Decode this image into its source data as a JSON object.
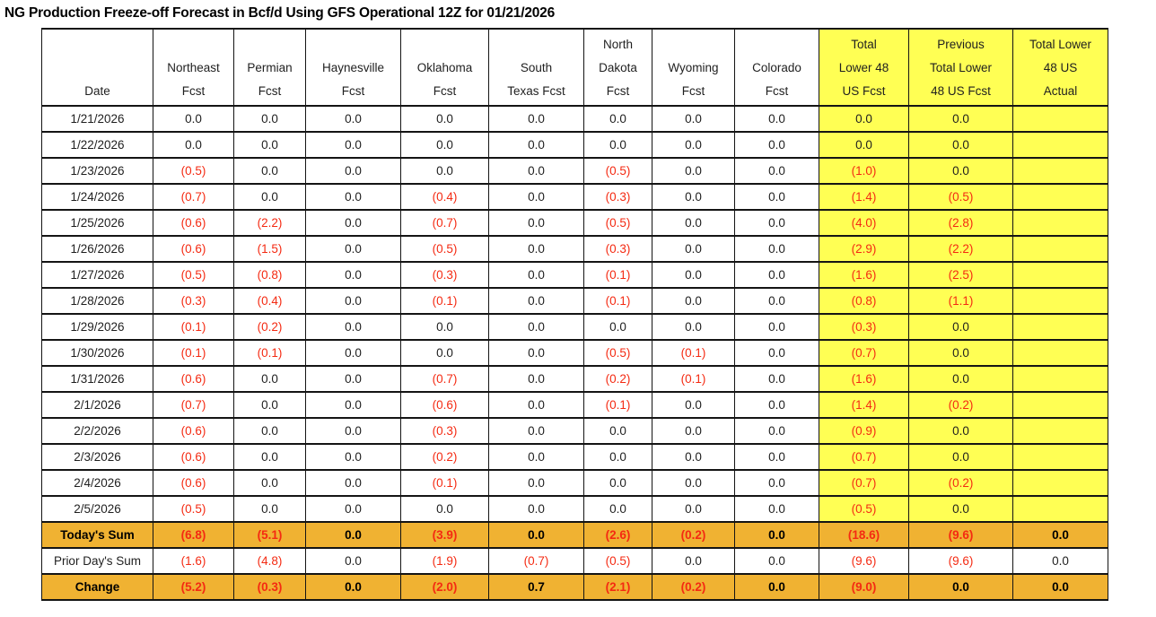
{
  "title": "NG Production Freeze-off Forecast in Bcf/d Using GFS Operational 12Z for 01/21/2026",
  "colors": {
    "yellow_highlight": "#FFFF54",
    "orange_highlight": "#F0B232",
    "negative_red": "#F42A12"
  },
  "table": {
    "columns": [
      {
        "id": "date",
        "label_lines": [
          "Date"
        ],
        "yellow": false
      },
      {
        "id": "northeast",
        "label_lines": [
          "Northeast",
          "Fcst"
        ],
        "yellow": false
      },
      {
        "id": "permian",
        "label_lines": [
          "Permian",
          "Fcst"
        ],
        "yellow": false
      },
      {
        "id": "haynesville",
        "label_lines": [
          "Haynesville",
          "Fcst"
        ],
        "yellow": false
      },
      {
        "id": "oklahoma",
        "label_lines": [
          "Oklahoma",
          "Fcst"
        ],
        "yellow": false
      },
      {
        "id": "south-texas",
        "label_lines": [
          "South",
          "Texas Fcst"
        ],
        "yellow": false
      },
      {
        "id": "north-dakota",
        "label_lines": [
          "North",
          "Dakota",
          "Fcst"
        ],
        "yellow": false
      },
      {
        "id": "wyoming",
        "label_lines": [
          "Wyoming",
          "Fcst"
        ],
        "yellow": false
      },
      {
        "id": "colorado",
        "label_lines": [
          "Colorado",
          "Fcst"
        ],
        "yellow": false
      },
      {
        "id": "total-lower48-fcst",
        "label_lines": [
          "Total",
          "Lower 48",
          "US Fcst"
        ],
        "yellow": true
      },
      {
        "id": "prev-total-lower48-fcst",
        "label_lines": [
          "Previous",
          "Total Lower",
          "48 US Fcst"
        ],
        "yellow": true
      },
      {
        "id": "total-lower48-actual",
        "label_lines": [
          "Total Lower",
          "48 US",
          "Actual"
        ],
        "yellow": true
      }
    ],
    "rows": [
      {
        "date": "1/21/2026",
        "values": [
          "0.0",
          "0.0",
          "0.0",
          "0.0",
          "0.0",
          "0.0",
          "0.0",
          "0.0",
          "0.0",
          "0.0",
          ""
        ]
      },
      {
        "date": "1/22/2026",
        "values": [
          "0.0",
          "0.0",
          "0.0",
          "0.0",
          "0.0",
          "0.0",
          "0.0",
          "0.0",
          "0.0",
          "0.0",
          ""
        ]
      },
      {
        "date": "1/23/2026",
        "values": [
          "(0.5)",
          "0.0",
          "0.0",
          "0.0",
          "0.0",
          "(0.5)",
          "0.0",
          "0.0",
          "(1.0)",
          "0.0",
          ""
        ]
      },
      {
        "date": "1/24/2026",
        "values": [
          "(0.7)",
          "0.0",
          "0.0",
          "(0.4)",
          "0.0",
          "(0.3)",
          "0.0",
          "0.0",
          "(1.4)",
          "(0.5)",
          ""
        ]
      },
      {
        "date": "1/25/2026",
        "values": [
          "(0.6)",
          "(2.2)",
          "0.0",
          "(0.7)",
          "0.0",
          "(0.5)",
          "0.0",
          "0.0",
          "(4.0)",
          "(2.8)",
          ""
        ]
      },
      {
        "date": "1/26/2026",
        "values": [
          "(0.6)",
          "(1.5)",
          "0.0",
          "(0.5)",
          "0.0",
          "(0.3)",
          "0.0",
          "0.0",
          "(2.9)",
          "(2.2)",
          ""
        ]
      },
      {
        "date": "1/27/2026",
        "values": [
          "(0.5)",
          "(0.8)",
          "0.0",
          "(0.3)",
          "0.0",
          "(0.1)",
          "0.0",
          "0.0",
          "(1.6)",
          "(2.5)",
          ""
        ]
      },
      {
        "date": "1/28/2026",
        "values": [
          "(0.3)",
          "(0.4)",
          "0.0",
          "(0.1)",
          "0.0",
          "(0.1)",
          "0.0",
          "0.0",
          "(0.8)",
          "(1.1)",
          ""
        ]
      },
      {
        "date": "1/29/2026",
        "values": [
          "(0.1)",
          "(0.2)",
          "0.0",
          "0.0",
          "0.0",
          "0.0",
          "0.0",
          "0.0",
          "(0.3)",
          "0.0",
          ""
        ]
      },
      {
        "date": "1/30/2026",
        "values": [
          "(0.1)",
          "(0.1)",
          "0.0",
          "0.0",
          "0.0",
          "(0.5)",
          "(0.1)",
          "0.0",
          "(0.7)",
          "0.0",
          ""
        ]
      },
      {
        "date": "1/31/2026",
        "values": [
          "(0.6)",
          "0.0",
          "0.0",
          "(0.7)",
          "0.0",
          "(0.2)",
          "(0.1)",
          "0.0",
          "(1.6)",
          "0.0",
          ""
        ]
      },
      {
        "date": "2/1/2026",
        "values": [
          "(0.7)",
          "0.0",
          "0.0",
          "(0.6)",
          "0.0",
          "(0.1)",
          "0.0",
          "0.0",
          "(1.4)",
          "(0.2)",
          ""
        ]
      },
      {
        "date": "2/2/2026",
        "values": [
          "(0.6)",
          "0.0",
          "0.0",
          "(0.3)",
          "0.0",
          "0.0",
          "0.0",
          "0.0",
          "(0.9)",
          "0.0",
          ""
        ]
      },
      {
        "date": "2/3/2026",
        "values": [
          "(0.6)",
          "0.0",
          "0.0",
          "(0.2)",
          "0.0",
          "0.0",
          "0.0",
          "0.0",
          "(0.7)",
          "0.0",
          ""
        ]
      },
      {
        "date": "2/4/2026",
        "values": [
          "(0.6)",
          "0.0",
          "0.0",
          "(0.1)",
          "0.0",
          "0.0",
          "0.0",
          "0.0",
          "(0.7)",
          "(0.2)",
          ""
        ]
      },
      {
        "date": "2/5/2026",
        "values": [
          "(0.5)",
          "0.0",
          "0.0",
          "0.0",
          "0.0",
          "0.0",
          "0.0",
          "0.0",
          "(0.5)",
          "0.0",
          ""
        ]
      }
    ],
    "summary_rows": [
      {
        "label": "Today's Sum",
        "style": "orange",
        "values": [
          "(6.8)",
          "(5.1)",
          "0.0",
          "(3.9)",
          "0.0",
          "(2.6)",
          "(0.2)",
          "0.0",
          "(18.6)",
          "(9.6)",
          "0.0"
        ]
      },
      {
        "label": "Prior Day's Sum",
        "style": "plain",
        "values": [
          "(1.6)",
          "(4.8)",
          "0.0",
          "(1.9)",
          "(0.7)",
          "(0.5)",
          "0.0",
          "0.0",
          "(9.6)",
          "(9.6)",
          "0.0"
        ]
      },
      {
        "label": "Change",
        "style": "orange",
        "values": [
          "(5.2)",
          "(0.3)",
          "0.0",
          "(2.0)",
          "0.7",
          "(2.1)",
          "(0.2)",
          "0.0",
          "(9.0)",
          "0.0",
          "0.0"
        ]
      }
    ]
  }
}
